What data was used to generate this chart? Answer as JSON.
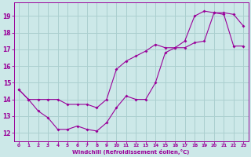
{
  "xlabel": "Windchill (Refroidissement éolien,°C)",
  "background_color": "#cce8e8",
  "grid_color": "#aacfcf",
  "line_color": "#990099",
  "xlim": [
    -0.5,
    23.5
  ],
  "ylim": [
    11.5,
    19.8
  ],
  "xticks": [
    0,
    1,
    2,
    3,
    4,
    5,
    6,
    7,
    8,
    9,
    10,
    11,
    12,
    13,
    14,
    15,
    16,
    17,
    18,
    19,
    20,
    21,
    22,
    23
  ],
  "yticks": [
    12,
    13,
    14,
    15,
    16,
    17,
    18,
    19
  ],
  "curve1_x": [
    0,
    1,
    2,
    3,
    4,
    5,
    6,
    7,
    8,
    9,
    10,
    11,
    12,
    13,
    14,
    15,
    16,
    17,
    18,
    19,
    20,
    21,
    22,
    23
  ],
  "curve1_y": [
    14.6,
    14.0,
    13.3,
    12.9,
    12.2,
    12.2,
    12.4,
    12.2,
    12.1,
    12.6,
    13.5,
    14.2,
    14.0,
    14.0,
    15.0,
    16.8,
    17.1,
    17.1,
    17.4,
    17.5,
    19.2,
    19.2,
    19.1,
    18.4
  ],
  "curve2_x": [
    0,
    1,
    2,
    3,
    4,
    5,
    6,
    7,
    8,
    9,
    10,
    11,
    12,
    13,
    14,
    15,
    16,
    17,
    18,
    19,
    20,
    21,
    22,
    23
  ],
  "curve2_y": [
    14.6,
    14.0,
    14.0,
    14.0,
    14.0,
    13.7,
    13.7,
    13.7,
    13.5,
    14.0,
    15.8,
    16.3,
    16.6,
    16.9,
    17.3,
    17.1,
    17.1,
    17.5,
    19.0,
    19.3,
    19.2,
    19.1,
    17.2,
    17.2
  ]
}
